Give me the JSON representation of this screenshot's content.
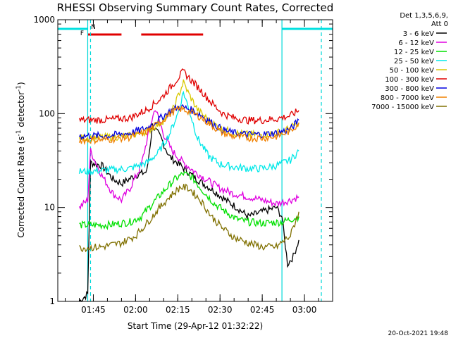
{
  "chart_data": {
    "type": "line",
    "title": "RHESSI Observing Summary Count Rates, Corrected",
    "xlabel": "Start Time (29-Apr-12 01:32:22)",
    "ylabel": "Corrected Count Rate (s⁻¹ detector⁻¹)",
    "ylabel_main": "Corrected Count Rate (s",
    "ylabel_sup1": "-1",
    "ylabel_mid": " detector",
    "ylabel_sup2": "-1",
    "ylabel_end": ")",
    "yscale": "log",
    "ylim": [
      1,
      1000
    ],
    "xlim": [
      "01:32:22",
      "03:10:00"
    ],
    "x_ticks": [
      "01:45",
      "02:00",
      "02:15",
      "02:30",
      "02:45",
      "03:00"
    ],
    "y_ticks": [
      "1",
      "10",
      "100",
      "1000"
    ],
    "legend_header": [
      "Det 1,3,5,6,9,",
      "Att 0"
    ],
    "legend_position": "right",
    "footer": "20-Oct-2021 19:48",
    "flags": [
      {
        "label": "F",
        "color": "#e00000",
        "segments": [
          [
            "01:43",
            "01:55"
          ],
          [
            "02:02",
            "02:24"
          ]
        ]
      },
      {
        "label": "N",
        "color": "#00e0e0",
        "segments": [
          [
            "01:32",
            "01:43"
          ],
          [
            "02:52",
            "03:10"
          ]
        ]
      }
    ],
    "vlines_solid": [
      "01:43",
      "02:52"
    ],
    "vlines_dashed": [
      "01:44",
      "03:06"
    ],
    "series": [
      {
        "name": "3 - 6 keV",
        "color": "#000000",
        "points": [
          [
            "01:40",
            1.0
          ],
          [
            "01:43",
            1.2
          ],
          [
            "01:44",
            30
          ],
          [
            "01:48",
            28
          ],
          [
            "01:52",
            20
          ],
          [
            "01:55",
            18
          ],
          [
            "02:00",
            22
          ],
          [
            "02:04",
            24
          ],
          [
            "02:06",
            75
          ],
          [
            "02:09",
            55
          ],
          [
            "02:12",
            35
          ],
          [
            "02:16",
            28
          ],
          [
            "02:20",
            22
          ],
          [
            "02:24",
            18
          ],
          [
            "02:28",
            15
          ],
          [
            "02:32",
            12
          ],
          [
            "02:36",
            10
          ],
          [
            "02:40",
            8
          ],
          [
            "02:45",
            9
          ],
          [
            "02:50",
            10
          ],
          [
            "02:52",
            8
          ],
          [
            "02:54",
            2.5
          ],
          [
            "02:56",
            3
          ],
          [
            "02:58",
            4.5
          ]
        ]
      },
      {
        "name": "6 - 12 keV",
        "color": "#e000e0",
        "points": [
          [
            "01:40",
            10
          ],
          [
            "01:43",
            12
          ],
          [
            "01:44",
            40
          ],
          [
            "01:48",
            22
          ],
          [
            "01:52",
            14
          ],
          [
            "01:55",
            12
          ],
          [
            "01:58",
            16
          ],
          [
            "02:02",
            28
          ],
          [
            "02:05",
            70
          ],
          [
            "02:07",
            115
          ],
          [
            "02:10",
            60
          ],
          [
            "02:13",
            40
          ],
          [
            "02:17",
            30
          ],
          [
            "02:21",
            24
          ],
          [
            "02:25",
            20
          ],
          [
            "02:30",
            16
          ],
          [
            "02:35",
            14
          ],
          [
            "02:40",
            13
          ],
          [
            "02:45",
            12
          ],
          [
            "02:50",
            11
          ],
          [
            "02:55",
            12
          ],
          [
            "02:58",
            13
          ]
        ]
      },
      {
        "name": "12 - 25 keV",
        "color": "#00e000",
        "points": [
          [
            "01:40",
            6.5
          ],
          [
            "01:50",
            6.5
          ],
          [
            "01:58",
            7
          ],
          [
            "02:02",
            8
          ],
          [
            "02:06",
            11
          ],
          [
            "02:10",
            15
          ],
          [
            "02:14",
            20
          ],
          [
            "02:17",
            23
          ],
          [
            "02:20",
            21
          ],
          [
            "02:24",
            15
          ],
          [
            "02:28",
            11
          ],
          [
            "02:32",
            9
          ],
          [
            "02:36",
            7.5
          ],
          [
            "02:40",
            7
          ],
          [
            "02:45",
            6.8
          ],
          [
            "02:52",
            7
          ],
          [
            "02:58",
            8
          ]
        ]
      },
      {
        "name": "25 - 50 keV",
        "color": "#00e8e8",
        "points": [
          [
            "01:40",
            24
          ],
          [
            "01:50",
            25
          ],
          [
            "01:58",
            26
          ],
          [
            "02:04",
            30
          ],
          [
            "02:08",
            38
          ],
          [
            "02:12",
            60
          ],
          [
            "02:15",
            100
          ],
          [
            "02:17",
            170
          ],
          [
            "02:19",
            110
          ],
          [
            "02:22",
            55
          ],
          [
            "02:26",
            35
          ],
          [
            "02:30",
            29
          ],
          [
            "02:35",
            27
          ],
          [
            "02:40",
            26
          ],
          [
            "02:45",
            26
          ],
          [
            "02:50",
            28
          ],
          [
            "02:55",
            32
          ],
          [
            "02:58",
            40
          ]
        ]
      },
      {
        "name": "50 - 100 keV",
        "color": "#d8c800",
        "points": [
          [
            "01:40",
            55
          ],
          [
            "01:50",
            56
          ],
          [
            "01:58",
            58
          ],
          [
            "02:04",
            65
          ],
          [
            "02:09",
            80
          ],
          [
            "02:13",
            105
          ],
          [
            "02:16",
            180
          ],
          [
            "02:17",
            215
          ],
          [
            "02:19",
            160
          ],
          [
            "02:22",
            110
          ],
          [
            "02:26",
            85
          ],
          [
            "02:30",
            70
          ],
          [
            "02:35",
            62
          ],
          [
            "02:40",
            60
          ],
          [
            "02:45",
            60
          ],
          [
            "02:50",
            62
          ],
          [
            "02:55",
            70
          ],
          [
            "02:58",
            80
          ]
        ]
      },
      {
        "name": "100 - 300 keV",
        "color": "#e00000",
        "points": [
          [
            "01:40",
            85
          ],
          [
            "01:50",
            86
          ],
          [
            "01:58",
            90
          ],
          [
            "02:04",
            110
          ],
          [
            "02:09",
            145
          ],
          [
            "02:13",
            200
          ],
          [
            "02:16",
            260
          ],
          [
            "02:17",
            280
          ],
          [
            "02:19",
            240
          ],
          [
            "02:23",
            180
          ],
          [
            "02:27",
            130
          ],
          [
            "02:31",
            100
          ],
          [
            "02:35",
            90
          ],
          [
            "02:40",
            85
          ],
          [
            "02:45",
            85
          ],
          [
            "02:50",
            88
          ],
          [
            "02:55",
            95
          ],
          [
            "02:58",
            108
          ]
        ]
      },
      {
        "name": "300 - 800 keV",
        "color": "#0000e0",
        "points": [
          [
            "01:40",
            58
          ],
          [
            "01:50",
            58
          ],
          [
            "01:58",
            62
          ],
          [
            "02:04",
            70
          ],
          [
            "02:09",
            90
          ],
          [
            "02:13",
            110
          ],
          [
            "02:16",
            118
          ],
          [
            "02:19",
            112
          ],
          [
            "02:23",
            98
          ],
          [
            "02:27",
            80
          ],
          [
            "02:31",
            67
          ],
          [
            "02:35",
            62
          ],
          [
            "02:40",
            60
          ],
          [
            "02:45",
            60
          ],
          [
            "02:50",
            62
          ],
          [
            "02:55",
            68
          ],
          [
            "02:58",
            85
          ]
        ]
      },
      {
        "name": "800 - 7000 keV",
        "color": "#f08000",
        "points": [
          [
            "01:40",
            52
          ],
          [
            "01:50",
            53
          ],
          [
            "01:58",
            56
          ],
          [
            "02:04",
            64
          ],
          [
            "02:09",
            82
          ],
          [
            "02:13",
            104
          ],
          [
            "02:16",
            112
          ],
          [
            "02:19",
            106
          ],
          [
            "02:23",
            92
          ],
          [
            "02:27",
            75
          ],
          [
            "02:31",
            62
          ],
          [
            "02:35",
            57
          ],
          [
            "02:40",
            55
          ],
          [
            "02:45",
            55
          ],
          [
            "02:50",
            57
          ],
          [
            "02:55",
            65
          ],
          [
            "02:58",
            80
          ]
        ]
      },
      {
        "name": "7000 - 15000 keV",
        "color": "#807000",
        "points": [
          [
            "01:40",
            3.7
          ],
          [
            "01:48",
            3.8
          ],
          [
            "01:55",
            4.2
          ],
          [
            "02:00",
            5
          ],
          [
            "02:04",
            6.8
          ],
          [
            "02:08",
            9.5
          ],
          [
            "02:12",
            13
          ],
          [
            "02:16",
            16.5
          ],
          [
            "02:19",
            16
          ],
          [
            "02:23",
            12
          ],
          [
            "02:27",
            8
          ],
          [
            "02:31",
            6
          ],
          [
            "02:35",
            4.8
          ],
          [
            "02:40",
            4.2
          ],
          [
            "02:45",
            3.8
          ],
          [
            "02:50",
            3.8
          ],
          [
            "02:55",
            5
          ],
          [
            "02:58",
            9
          ]
        ]
      }
    ]
  }
}
